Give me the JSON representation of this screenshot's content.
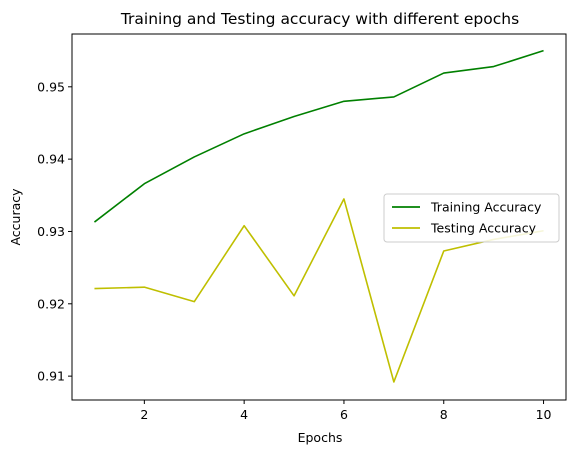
{
  "chart_data": {
    "type": "line",
    "title": "Training and Testing accuracy with different epochs",
    "xlabel": "Epochs",
    "ylabel": "Accuracy",
    "x": [
      1,
      2,
      3,
      4,
      5,
      6,
      7,
      8,
      9,
      10
    ],
    "xlim": [
      0.55,
      10.45
    ],
    "ylim": [
      0.9067,
      0.9573
    ],
    "xticks": [
      2,
      4,
      6,
      8,
      10
    ],
    "yticks": [
      0.91,
      0.92,
      0.93,
      0.94,
      0.95
    ],
    "xtick_labels": [
      "2",
      "4",
      "6",
      "8",
      "10"
    ],
    "ytick_labels": [
      "0.91",
      "0.92",
      "0.93",
      "0.94",
      "0.95"
    ],
    "grid": false,
    "legend_position": "center-right",
    "series": [
      {
        "name": "Training Accuracy",
        "color": "#008000",
        "values": [
          0.9313,
          0.9366,
          0.9403,
          0.9435,
          0.9459,
          0.948,
          0.9486,
          0.9519,
          0.9528,
          0.955
        ]
      },
      {
        "name": "Testing Accuracy",
        "color": "#bfbf00",
        "values": [
          0.9221,
          0.9223,
          0.9203,
          0.9308,
          0.9211,
          0.9345,
          0.9092,
          0.9273,
          0.9289,
          0.9301
        ]
      }
    ]
  }
}
